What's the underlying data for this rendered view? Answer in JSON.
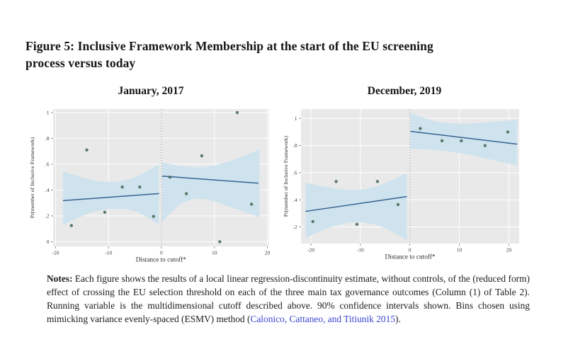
{
  "figure_title": {
    "line1": "Figure 5: Inclusive Framework Membership at the start of the EU screening",
    "line2": "process versus today"
  },
  "notes": {
    "label": "Notes:",
    "body": " Each figure shows the results of a local linear regression-discontinuity estimate, without controls, of the (reduced form) effect of crossing the EU selection threshold on each of the three main tax governance outcomes (Column (1) of Table 2). Running variable is the multidimensional cutoff described above. 90% confidence intervals shown. Bins chosen using mimicking variance evenly-spaced (ESMV) method (",
    "link": "Calonico, Cattaneo, and Titiunik 2015",
    "suffix": ")."
  },
  "colors": {
    "plot_bg": "#e9e9e9",
    "grid": "#ffffff",
    "band": "#cfe3ee",
    "fit_line": "#356390",
    "point": "#4e6f60",
    "cutoff": "#a3a3a3",
    "tick_text": "#3d3d3d",
    "axis_text": "#2a2a2a",
    "link": "#3a45d1"
  },
  "chart_data": [
    {
      "type": "scatter",
      "title": "January, 2017",
      "xlabel": "Distance to cutoff*",
      "ylabel": "Pr(member of Inclusive Framework)",
      "xlim": [
        -20.45,
        20.26
      ],
      "ylim": [
        -0.036,
        1.027
      ],
      "x_ticks": [
        {
          "v": -20,
          "label": "-20"
        },
        {
          "v": -10,
          "label": "-10"
        },
        {
          "v": 0,
          "label": "0"
        },
        {
          "v": 10,
          "label": "10"
        },
        {
          "v": 20,
          "label": "20"
        }
      ],
      "y_ticks": [
        {
          "v": 0,
          "label": "0"
        },
        {
          "v": 0.2,
          "label": ".2"
        },
        {
          "v": 0.4,
          "label": ".4"
        },
        {
          "v": 0.6,
          "label": ".6"
        },
        {
          "v": 0.8,
          "label": ".8"
        },
        {
          "v": 1,
          "label": "1"
        }
      ],
      "cutoff_x": 0,
      "grid": true,
      "points": [
        [
          -17.0,
          0.125
        ],
        [
          -14.1,
          0.71
        ],
        [
          -10.7,
          0.228
        ],
        [
          -7.4,
          0.423
        ],
        [
          -4.1,
          0.423
        ],
        [
          -1.5,
          0.196
        ],
        [
          1.6,
          0.5
        ],
        [
          4.7,
          0.372
        ],
        [
          7.6,
          0.665
        ],
        [
          11.0,
          0.0
        ],
        [
          14.3,
          1.0
        ],
        [
          17.0,
          0.29
        ]
      ],
      "fit_lines": [
        {
          "x1": -18.6,
          "y1": 0.318,
          "x2": -0.45,
          "y2": 0.373
        },
        {
          "x1": 0.1,
          "y1": 0.508,
          "x2": 18.3,
          "y2": 0.453
        }
      ],
      "bands": [
        {
          "x": [
            -18.6,
            -14.0,
            -9.5,
            -5.0,
            -0.45
          ],
          "top": [
            0.545,
            0.487,
            0.462,
            0.5,
            0.6
          ],
          "bottom": [
            0.128,
            0.215,
            0.253,
            0.235,
            0.132
          ]
        },
        {
          "x": [
            0.1,
            4.0,
            8.0,
            13.0,
            18.5
          ],
          "top": [
            0.615,
            0.585,
            0.578,
            0.625,
            0.715
          ],
          "bottom": [
            0.155,
            0.3,
            0.33,
            0.27,
            0.19
          ]
        }
      ]
    },
    {
      "type": "scatter",
      "title": "December, 2019",
      "xlabel": "Distance to cutoff*",
      "ylabel": "Pr(member of Inclusive Framework)",
      "xlim": [
        -22.0,
        22.1
      ],
      "ylim": [
        0.078,
        1.069
      ],
      "x_ticks": [
        {
          "v": -20,
          "label": "-20"
        },
        {
          "v": -10,
          "label": "-10"
        },
        {
          "v": 0,
          "label": "0"
        },
        {
          "v": 10,
          "label": "10"
        },
        {
          "v": 20,
          "label": "20"
        }
      ],
      "y_ticks": [
        {
          "v": 0.2,
          "label": ".2"
        },
        {
          "v": 0.4,
          "label": ".4"
        },
        {
          "v": 0.6,
          "label": ".6"
        },
        {
          "v": 0.8,
          "label": ".8"
        },
        {
          "v": 1,
          "label": "1"
        }
      ],
      "cutoff_x": 0,
      "grid": true,
      "points": [
        [
          -19.6,
          0.24
        ],
        [
          -14.9,
          0.535
        ],
        [
          -10.7,
          0.22
        ],
        [
          -6.55,
          0.535
        ],
        [
          -2.4,
          0.365
        ],
        [
          2.1,
          0.925
        ],
        [
          6.5,
          0.835
        ],
        [
          10.4,
          0.835
        ],
        [
          15.2,
          0.8
        ],
        [
          19.8,
          0.9
        ]
      ],
      "fit_lines": [
        {
          "x1": -21.1,
          "y1": 0.315,
          "x2": -0.6,
          "y2": 0.424
        },
        {
          "x1": 0.1,
          "y1": 0.905,
          "x2": 21.7,
          "y2": 0.81
        }
      ],
      "bands": [
        {
          "x": [
            -21.1,
            -16.0,
            -11.0,
            -6.0,
            -0.6
          ],
          "top": [
            0.525,
            0.49,
            0.472,
            0.51,
            0.598
          ],
          "bottom": [
            0.118,
            0.198,
            0.235,
            0.205,
            0.105
          ]
        },
        {
          "x": [
            0.1,
            5.0,
            10.0,
            16.0,
            21.7
          ],
          "top": [
            1.04,
            0.98,
            0.962,
            0.972,
            0.99
          ],
          "bottom": [
            0.775,
            0.768,
            0.745,
            0.7,
            0.652
          ]
        }
      ]
    }
  ]
}
